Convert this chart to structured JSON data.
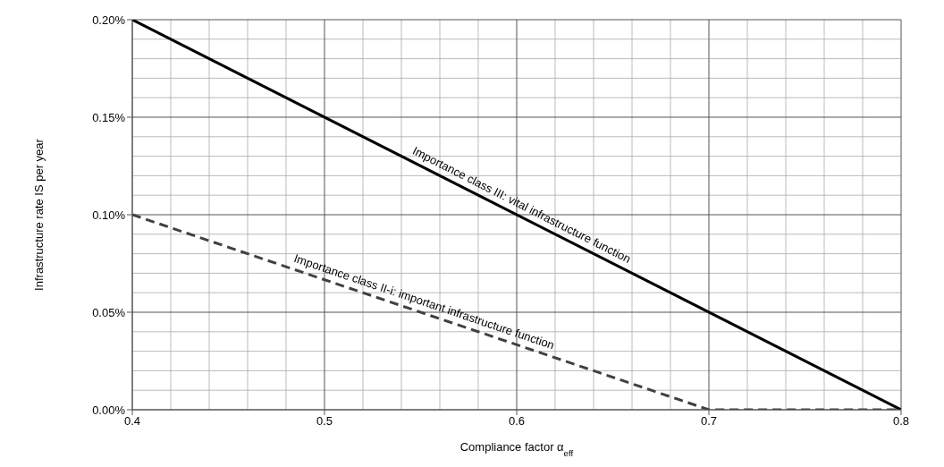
{
  "chart_data": {
    "type": "line",
    "xlabel": "Compliance factor α$_{eff}$",
    "ylabel": "Infrastructure rate IS per year",
    "xlim": [
      0.4,
      0.8
    ],
    "xticks": [
      0.4,
      0.5,
      0.6,
      0.7,
      0.8
    ],
    "ylim": [
      0,
      0.2
    ],
    "yticks": [
      {
        "value": 0,
        "label": "0.00%"
      },
      {
        "value": 0.05,
        "label": "0.05%"
      },
      {
        "value": 0.1,
        "label": "0.10%"
      },
      {
        "value": 0.15,
        "label": "0.15%"
      },
      {
        "value": 0.2,
        "label": "0.20%"
      }
    ],
    "grid": true,
    "marker": "none",
    "series": [
      {
        "name": "Importance class III: vital infrastructure function",
        "color": "#000000",
        "line_style": "solid",
        "x": [
          0.4,
          0.8
        ],
        "values": [
          0.2,
          0
        ]
      },
      {
        "name": "Importance class II-i: important infrastructure function",
        "color": "#404040",
        "line_style": "dashed",
        "x": [
          0.4,
          0.7,
          0.8
        ],
        "values": [
          0.1,
          0,
          0
        ]
      }
    ]
  }
}
